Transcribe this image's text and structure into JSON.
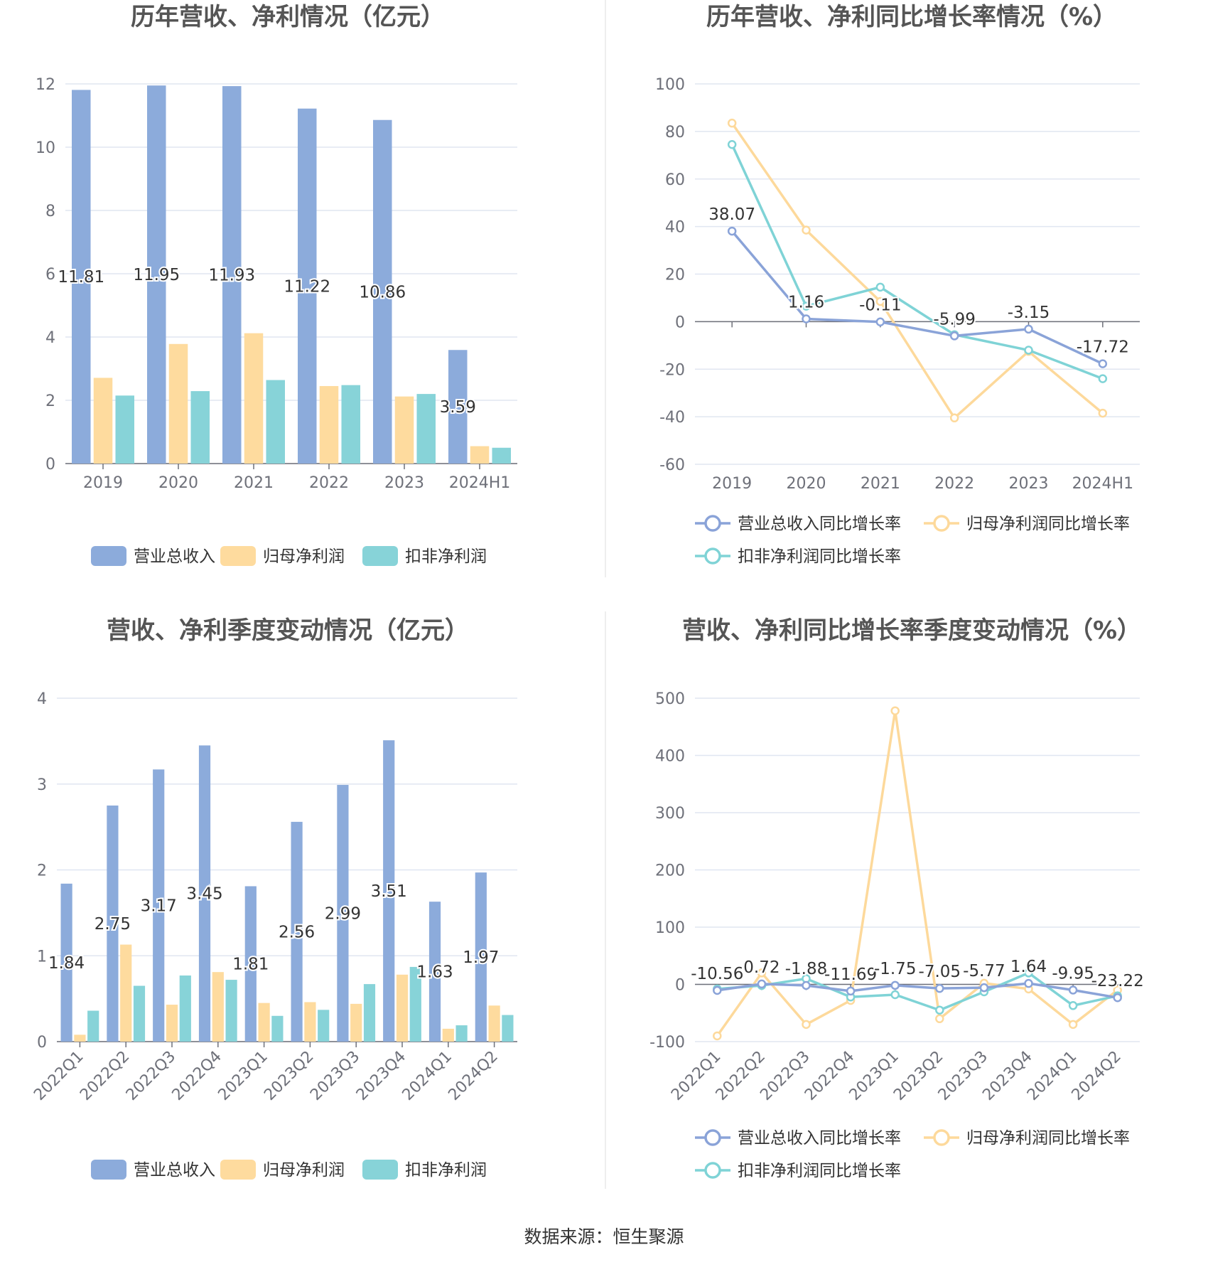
{
  "source": "数据来源：恒生聚源",
  "colors": {
    "revenue": "#8cabdb",
    "net_profit": "#fedb9e",
    "deducted_profit": "#87d3d8",
    "rev_line": "#8aa3d8",
    "np_line": "#fdd99b",
    "dp_line": "#7fd3d6",
    "grid": "#e0e6f1",
    "axis": "#6e7079"
  },
  "chart_data": [
    {
      "type": "bar",
      "title": "历年营收、净利情况（亿元）",
      "categories": [
        "2019",
        "2020",
        "2021",
        "2022",
        "2023",
        "2024H1"
      ],
      "ylim": [
        0,
        12
      ],
      "yticks": [
        0,
        2,
        4,
        6,
        8,
        10,
        12
      ],
      "series": [
        {
          "name": "营业总收入",
          "values": [
            11.81,
            11.95,
            11.93,
            11.22,
            10.86,
            3.59
          ],
          "labels": [
            "11.81",
            "11.95",
            "11.93",
            "11.22",
            "10.86",
            "3.59"
          ]
        },
        {
          "name": "归母净利润",
          "values": [
            2.71,
            3.78,
            4.12,
            2.45,
            2.12,
            0.55
          ]
        },
        {
          "name": "扣非净利润",
          "values": [
            2.15,
            2.29,
            2.64,
            2.48,
            2.2,
            0.5
          ]
        }
      ],
      "legend": "bottom",
      "grid": true
    },
    {
      "type": "line",
      "title": "历年营收、净利同比增长率情况（%）",
      "categories": [
        "2019",
        "2020",
        "2021",
        "2022",
        "2023",
        "2024H1"
      ],
      "ylim": [
        -60,
        100
      ],
      "yticks": [
        -60,
        -40,
        -20,
        0,
        20,
        40,
        60,
        80,
        100
      ],
      "series": [
        {
          "name": "营业总收入同比增长率",
          "values": [
            38.07,
            1.16,
            -0.11,
            -5.99,
            -3.15,
            -17.72
          ],
          "labels": [
            "38.07",
            "1.16",
            "-0.11",
            "-5.99",
            "-3.15",
            "-17.72"
          ]
        },
        {
          "name": "归母净利润同比增长率",
          "values": [
            83.5,
            38.5,
            8.5,
            -40.5,
            -12.5,
            -38.5
          ]
        },
        {
          "name": "扣非净利润同比增长率",
          "values": [
            74.5,
            6.5,
            14.5,
            -5.5,
            -12,
            -24
          ]
        }
      ],
      "legend": "bottom",
      "grid": true
    },
    {
      "type": "bar",
      "title": "营收、净利季度变动情况（亿元）",
      "categories": [
        "2022Q1",
        "2022Q2",
        "2022Q3",
        "2022Q4",
        "2023Q1",
        "2023Q2",
        "2023Q3",
        "2023Q4",
        "2024Q1",
        "2024Q2"
      ],
      "ylim": [
        0,
        4
      ],
      "yticks": [
        0,
        1,
        2,
        3,
        4
      ],
      "series": [
        {
          "name": "营业总收入",
          "values": [
            1.84,
            2.75,
            3.17,
            3.45,
            1.81,
            2.56,
            2.99,
            3.51,
            1.63,
            1.97
          ],
          "labels": [
            "1.84",
            "2.75",
            "3.17",
            "3.45",
            "1.81",
            "2.56",
            "2.99",
            "3.51",
            "1.63",
            "1.97"
          ]
        },
        {
          "name": "归母净利润",
          "values": [
            0.08,
            1.13,
            0.43,
            0.81,
            0.45,
            0.46,
            0.44,
            0.78,
            0.15,
            0.42
          ]
        },
        {
          "name": "扣非净利润",
          "values": [
            0.36,
            0.65,
            0.77,
            0.72,
            0.3,
            0.37,
            0.67,
            0.87,
            0.19,
            0.31
          ]
        }
      ],
      "legend": "bottom",
      "grid": true
    },
    {
      "type": "line",
      "title": "营收、净利同比增长率季度变动情况（%）",
      "categories": [
        "2022Q1",
        "2022Q2",
        "2022Q3",
        "2022Q4",
        "2023Q1",
        "2023Q2",
        "2023Q3",
        "2023Q4",
        "2024Q1",
        "2024Q2"
      ],
      "ylim": [
        -100,
        500
      ],
      "yticks": [
        -100,
        0,
        100,
        200,
        300,
        400,
        500
      ],
      "series": [
        {
          "name": "营业总收入同比增长率",
          "values": [
            -10.56,
            0.72,
            -1.88,
            -11.69,
            -1.75,
            -7.05,
            -5.77,
            1.64,
            -9.95,
            -23.22
          ],
          "labels": [
            "-10.56",
            "0.72",
            "-1.88",
            "-11.69",
            "-1.75",
            "-7.05",
            "-5.77",
            "1.64",
            "-9.95",
            "-23.22"
          ]
        },
        {
          "name": "归母净利润同比增长率",
          "values": [
            -90,
            20,
            -70,
            -28,
            478,
            -60,
            2,
            -8,
            -70,
            -10
          ]
        },
        {
          "name": "扣非净利润同比增长率",
          "values": [
            -8,
            -2,
            10,
            -22,
            -18,
            -45,
            -13,
            20,
            -37,
            -20
          ]
        }
      ],
      "legend": "bottom",
      "grid": true
    }
  ]
}
